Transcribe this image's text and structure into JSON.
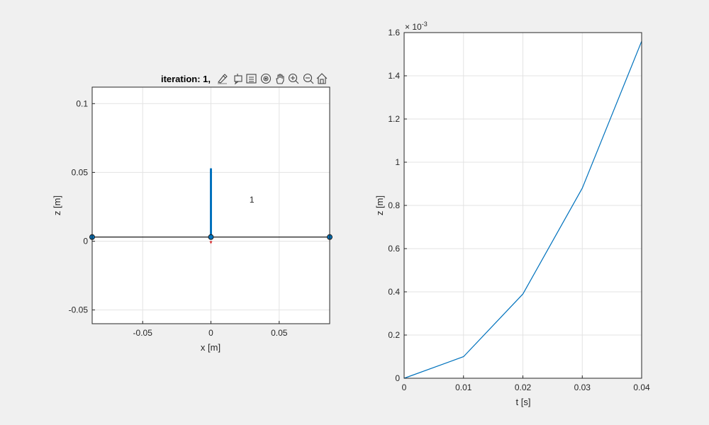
{
  "toolbar": {
    "items": [
      "brush-icon",
      "data-tip-icon",
      "legend-icon",
      "rotate-icon",
      "pan-icon",
      "zoom-in-icon",
      "zoom-out-icon",
      "home-icon"
    ]
  },
  "chart_data": [
    {
      "type": "line",
      "title": "iteration: 1,",
      "xlabel": "x [m]",
      "ylabel": "z [m]",
      "xlim": [
        -0.087,
        0.087
      ],
      "ylim": [
        -0.06,
        0.112
      ],
      "xticks": [
        -0.05,
        0,
        0.05
      ],
      "xtick_labels": [
        "-0.05",
        "0",
        "0.05"
      ],
      "yticks": [
        -0.05,
        0,
        0.05,
        0.1
      ],
      "ytick_labels": [
        "-0.05",
        "0",
        "0.05",
        "0.1"
      ],
      "grid": true,
      "series": [
        {
          "kind": "beam-line",
          "x": [
            -0.087,
            0.087
          ],
          "y": [
            0.003,
            0.003
          ],
          "color": "#000000"
        },
        {
          "kind": "nodes",
          "x": [
            -0.087,
            0,
            0.087
          ],
          "y": [
            0.003,
            0.003,
            0.003
          ],
          "color": "#0072BD"
        },
        {
          "kind": "force-arrow",
          "x": [
            0,
            0
          ],
          "y": [
            0.003,
            0.053
          ],
          "color": "#0072BD"
        },
        {
          "kind": "support-marker",
          "x": [
            0
          ],
          "y": [
            0.001
          ],
          "color": "#d62728"
        }
      ],
      "annotations": [
        {
          "text": "1",
          "x": 0.03,
          "y": 0.03
        }
      ]
    },
    {
      "type": "line",
      "title": "",
      "xlabel": "t [s]",
      "ylabel": "z [m]",
      "xlim": [
        0,
        0.04
      ],
      "ylim": [
        0,
        0.0016
      ],
      "xticks": [
        0,
        0.01,
        0.02,
        0.03,
        0.04
      ],
      "xtick_labels": [
        "0",
        "0.01",
        "0.02",
        "0.03",
        "0.04"
      ],
      "yticks": [
        0,
        0.2,
        0.4,
        0.6,
        0.8,
        1.0,
        1.2,
        1.4,
        1.6
      ],
      "ytick_labels": [
        "0",
        "0.2",
        "0.4",
        "0.6",
        "0.8",
        "1",
        "1.2",
        "1.4",
        "1.6"
      ],
      "ytick_scale": 0.001,
      "exponent_base": "× 10",
      "exponent_power": "-3",
      "grid": true,
      "series": [
        {
          "x": [
            0,
            0.01,
            0.02,
            0.03,
            0.04
          ],
          "y": [
            0,
            0.0001,
            0.00039,
            0.00088,
            0.00156
          ],
          "color": "#0072BD"
        }
      ]
    }
  ]
}
